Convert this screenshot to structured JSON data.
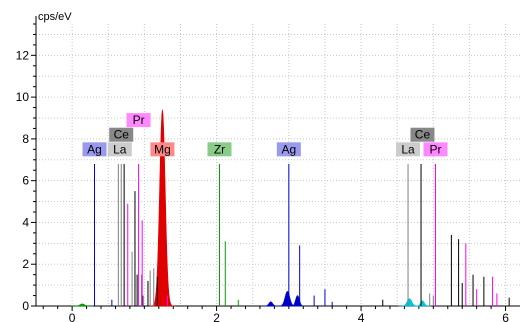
{
  "chart_data": {
    "type": "bar",
    "ylabel": "cps/eV",
    "xlim": [
      -0.5,
      6.2
    ],
    "ylim": [
      0,
      13.5
    ],
    "x_ticks": [
      0,
      2,
      4,
      6
    ],
    "x_tick_labels": [
      "0",
      "2",
      "4",
      "6"
    ],
    "y_ticks": [
      0,
      2,
      4,
      6,
      8,
      10,
      12
    ],
    "y_tick_labels": [
      "0",
      "2",
      "4",
      "6",
      "8",
      "10",
      "12"
    ],
    "grid": true,
    "series": [
      {
        "color": "#0000cc",
        "lines": [
          {
            "x": 0.31,
            "y": 6.8
          },
          {
            "x": 0.55,
            "y": 0.3
          },
          {
            "x": 3.0,
            "y": 6.8
          },
          {
            "x": 3.15,
            "y": 2.9
          },
          {
            "x": 3.35,
            "y": 0.5
          },
          {
            "x": 3.5,
            "y": 0.8
          },
          {
            "x": 3.6,
            "y": 0.2
          }
        ],
        "peaks": [
          {
            "x": 2.98,
            "height": 0.7,
            "width": 0.1
          },
          {
            "x": 3.12,
            "height": 0.5,
            "width": 0.08
          },
          {
            "x": 2.75,
            "height": 0.2,
            "width": 0.08
          }
        ]
      },
      {
        "color": "#e00000",
        "lines": [],
        "peaks": [
          {
            "x": 1.25,
            "height": 9.4,
            "width": 0.12
          }
        ]
      },
      {
        "color": "#808080",
        "lines": [
          {
            "x": 0.64,
            "y": 6.8
          },
          {
            "x": 0.68,
            "y": 6.8
          },
          {
            "x": 0.83,
            "y": 2.6
          },
          {
            "x": 0.96,
            "y": 1.5
          },
          {
            "x": 1.08,
            "y": 1.7
          },
          {
            "x": 1.13,
            "y": 1.8
          },
          {
            "x": 4.65,
            "y": 6.8
          },
          {
            "x": 4.95,
            "y": 0.6
          },
          {
            "x": 5.0,
            "y": 0.5
          }
        ]
      },
      {
        "color": "#000000",
        "lines": [
          {
            "x": 0.72,
            "y": 6.8
          },
          {
            "x": 0.87,
            "y": 5.5
          },
          {
            "x": 0.9,
            "y": 1.5
          },
          {
            "x": 0.98,
            "y": 0.5
          },
          {
            "x": 1.05,
            "y": 1.2
          },
          {
            "x": 1.18,
            "y": 1.4
          },
          {
            "x": 4.3,
            "y": 0.3
          },
          {
            "x": 4.83,
            "y": 6.8
          },
          {
            "x": 5.25,
            "y": 3.4
          },
          {
            "x": 5.35,
            "y": 3.2
          },
          {
            "x": 5.4,
            "y": 1.1
          },
          {
            "x": 5.55,
            "y": 1.5
          },
          {
            "x": 5.7,
            "y": 1.4
          },
          {
            "x": 6.05,
            "y": 0.4
          }
        ]
      },
      {
        "color": "#ff00ff",
        "lines": [
          {
            "x": 0.77,
            "y": 4.9
          },
          {
            "x": 0.92,
            "y": 6.8
          },
          {
            "x": 0.97,
            "y": 4.1
          },
          {
            "x": 1.32,
            "y": 0.5
          },
          {
            "x": 5.03,
            "y": 6.8
          },
          {
            "x": 5.45,
            "y": 3.0
          },
          {
            "x": 5.6,
            "y": 0.8
          },
          {
            "x": 5.82,
            "y": 1.4
          },
          {
            "x": 5.88,
            "y": 0.6
          }
        ]
      },
      {
        "color": "#00a000",
        "lines": [
          {
            "x": 2.04,
            "y": 6.8
          },
          {
            "x": 2.12,
            "y": 3.1
          },
          {
            "x": 2.3,
            "y": 0.3
          }
        ],
        "peaks": [
          {
            "x": 0.14,
            "height": 0.1,
            "width": 0.1
          }
        ]
      },
      {
        "color": "#00c8d8",
        "lines": [],
        "peaks": [
          {
            "x": 4.67,
            "height": 0.35,
            "width": 0.1
          },
          {
            "x": 4.85,
            "height": 0.25,
            "width": 0.08
          }
        ]
      }
    ],
    "labels": [
      {
        "text": "Ag",
        "x": 0.31,
        "y": 7.5,
        "color": "#9999ee"
      },
      {
        "text": "Ce",
        "x": 0.68,
        "y": 8.2,
        "color": "#888888"
      },
      {
        "text": "La",
        "x": 0.66,
        "y": 7.5,
        "color": "#cccccc"
      },
      {
        "text": "Pr",
        "x": 0.92,
        "y": 8.9,
        "color": "#ff88ff"
      },
      {
        "text": "Mg",
        "x": 1.25,
        "y": 7.5,
        "color": "#ff8888"
      },
      {
        "text": "Zr",
        "x": 2.04,
        "y": 7.5,
        "color": "#88cc88"
      },
      {
        "text": "Ag",
        "x": 3.0,
        "y": 7.5,
        "color": "#9999ee"
      },
      {
        "text": "Ce",
        "x": 4.85,
        "y": 8.2,
        "color": "#888888"
      },
      {
        "text": "La",
        "x": 4.65,
        "y": 7.5,
        "color": "#cccccc"
      },
      {
        "text": "Pr",
        "x": 5.03,
        "y": 7.5,
        "color": "#ff88ff"
      }
    ]
  }
}
